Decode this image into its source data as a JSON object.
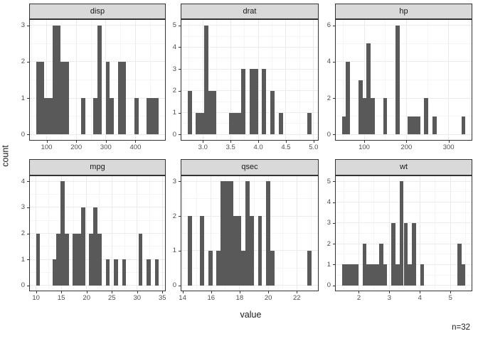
{
  "chart_data": {
    "type": "bar",
    "subtype": "faceted_histogram",
    "title": "",
    "xlabel": "value",
    "ylabel": "count",
    "annotation": "n=32",
    "sample_size": 32,
    "grid": true,
    "facet_layout": {
      "rows": 2,
      "cols": 3
    },
    "theme": {
      "bar_fill": "#595959",
      "strip_bg": "#d9d9d9",
      "panel_border": "#333333",
      "grid_major": "#ebebeb",
      "grid_minor": "#f5f5f5",
      "axis_text": "#4d4d4d",
      "title_text": "#1a1a1a",
      "panel_bg": "#ffffff"
    },
    "facets": [
      {
        "label": "disp",
        "x_domain": [
          43.45,
          499.65
        ],
        "bin_start": 64.188,
        "bin_width": 13.8241,
        "counts": [
          2,
          2,
          1,
          1,
          3,
          3,
          2,
          2,
          0,
          0,
          0,
          1,
          0,
          0,
          1,
          3,
          0,
          2,
          1,
          0,
          2,
          2,
          0,
          0,
          1,
          0,
          0,
          1,
          1,
          1
        ],
        "y_domain": [
          -0.15,
          3.15
        ],
        "x_ticks": [
          {
            "v": 100,
            "label": "100"
          },
          {
            "v": 200,
            "label": "200"
          },
          {
            "v": 300,
            "label": "300"
          },
          {
            "v": 400,
            "label": "400"
          }
        ],
        "x_minor": [
          50,
          150,
          250,
          350,
          450
        ],
        "y_ticks": [
          {
            "v": 0,
            "label": "0"
          },
          {
            "v": 1,
            "label": "1"
          },
          {
            "v": 2,
            "label": "2"
          },
          {
            "v": 3,
            "label": "3"
          }
        ],
        "y_minor": [
          0.5,
          1.5,
          2.5
        ]
      },
      {
        "label": "drat",
        "x_domain": [
          2.6104,
          5.0796
        ],
        "bin_start": 2.72259,
        "bin_width": 0.0748276,
        "counts": [
          2,
          0,
          1,
          1,
          5,
          2,
          2,
          0,
          0,
          0,
          1,
          1,
          1,
          3,
          0,
          3,
          3,
          0,
          3,
          0,
          2,
          0,
          1,
          0,
          0,
          0,
          0,
          0,
          0,
          1
        ],
        "y_domain": [
          -0.25,
          5.25
        ],
        "x_ticks": [
          {
            "v": 3.0,
            "label": "3.0"
          },
          {
            "v": 3.5,
            "label": "3.5"
          },
          {
            "v": 4.0,
            "label": "4.0"
          },
          {
            "v": 4.5,
            "label": "4.5"
          },
          {
            "v": 5.0,
            "label": "5.0"
          }
        ],
        "x_minor": [
          2.75,
          3.25,
          3.75,
          4.25,
          4.75
        ],
        "y_ticks": [
          {
            "v": 0,
            "label": "0"
          },
          {
            "v": 1,
            "label": "1"
          },
          {
            "v": 2,
            "label": "2"
          },
          {
            "v": 3,
            "label": "3"
          },
          {
            "v": 4,
            "label": "4"
          },
          {
            "v": 5,
            "label": "5"
          }
        ],
        "y_minor": [
          0.5,
          1.5,
          2.5,
          3.5,
          4.5
        ]
      },
      {
        "label": "hp",
        "x_domain": [
          32.483,
          354.517
        ],
        "bin_start": 47.1207,
        "bin_width": 9.75862,
        "counts": [
          1,
          4,
          0,
          0,
          3,
          2,
          5,
          2,
          0,
          0,
          2,
          0,
          0,
          6,
          0,
          0,
          1,
          1,
          1,
          0,
          2,
          0,
          1,
          0,
          0,
          0,
          0,
          0,
          0,
          1
        ],
        "y_domain": [
          -0.3,
          6.3
        ],
        "x_ticks": [
          {
            "v": 100,
            "label": "100"
          },
          {
            "v": 200,
            "label": "200"
          },
          {
            "v": 300,
            "label": "300"
          }
        ],
        "x_minor": [
          50,
          150,
          250,
          350
        ],
        "y_ticks": [
          {
            "v": 0,
            "label": "0"
          },
          {
            "v": 2,
            "label": "2"
          },
          {
            "v": 4,
            "label": "4"
          },
          {
            "v": 6,
            "label": "6"
          }
        ],
        "y_minor": [
          1,
          3,
          5
        ]
      },
      {
        "label": "mpg",
        "x_domain": [
          8.7793,
          35.5207
        ],
        "bin_start": 9.99483,
        "bin_width": 0.810345,
        "counts": [
          2,
          0,
          0,
          0,
          1,
          2,
          4,
          2,
          0,
          2,
          2,
          3,
          0,
          2,
          3,
          2,
          0,
          1,
          0,
          1,
          0,
          1,
          0,
          0,
          0,
          2,
          0,
          1,
          0,
          1
        ],
        "y_domain": [
          -0.2,
          4.2
        ],
        "x_ticks": [
          {
            "v": 10,
            "label": "10"
          },
          {
            "v": 15,
            "label": "15"
          },
          {
            "v": 20,
            "label": "20"
          },
          {
            "v": 25,
            "label": "25"
          },
          {
            "v": 30,
            "label": "30"
          },
          {
            "v": 35,
            "label": "35"
          }
        ],
        "x_minor": [
          12.5,
          17.5,
          22.5,
          27.5,
          32.5
        ],
        "y_ticks": [
          {
            "v": 0,
            "label": "0"
          },
          {
            "v": 1,
            "label": "1"
          },
          {
            "v": 2,
            "label": "2"
          },
          {
            "v": 3,
            "label": "3"
          },
          {
            "v": 4,
            "label": "4"
          }
        ],
        "y_minor": [
          0.5,
          1.5,
          2.5,
          3.5
        ]
      },
      {
        "label": "qsec",
        "x_domain": [
          13.9207,
          23.4793
        ],
        "bin_start": 14.3552,
        "bin_width": 0.289655,
        "counts": [
          2,
          0,
          0,
          2,
          0,
          1,
          0,
          1,
          3,
          3,
          3,
          2,
          2,
          1,
          3,
          2,
          0,
          2,
          0,
          3,
          1,
          0,
          0,
          0,
          0,
          0,
          0,
          0,
          0,
          1
        ],
        "y_domain": [
          -0.15,
          3.15
        ],
        "x_ticks": [
          {
            "v": 14,
            "label": "14"
          },
          {
            "v": 16,
            "label": "16"
          },
          {
            "v": 18,
            "label": "18"
          },
          {
            "v": 20,
            "label": "20"
          },
          {
            "v": 22,
            "label": "22"
          }
        ],
        "x_minor": [
          15,
          17,
          19,
          21,
          23
        ],
        "y_ticks": [
          {
            "v": 0,
            "label": "0"
          },
          {
            "v": 1,
            "label": "1"
          },
          {
            "v": 2,
            "label": "2"
          },
          {
            "v": 3,
            "label": "3"
          }
        ],
        "y_minor": [
          0.5,
          1.5,
          2.5
        ]
      },
      {
        "label": "wt",
        "x_domain": [
          1.24327,
          5.69372
        ],
        "bin_start": 1.44557,
        "bin_width": 0.134862,
        "counts": [
          1,
          1,
          1,
          1,
          0,
          2,
          1,
          1,
          1,
          2,
          1,
          0,
          3,
          1,
          5,
          3,
          1,
          3,
          0,
          1,
          0,
          0,
          0,
          0,
          0,
          0,
          0,
          0,
          2,
          1
        ],
        "y_domain": [
          -0.25,
          5.25
        ],
        "x_ticks": [
          {
            "v": 2,
            "label": "2"
          },
          {
            "v": 3,
            "label": "3"
          },
          {
            "v": 4,
            "label": "4"
          },
          {
            "v": 5,
            "label": "5"
          }
        ],
        "x_minor": [
          1.5,
          2.5,
          3.5,
          4.5,
          5.5
        ],
        "y_ticks": [
          {
            "v": 0,
            "label": "0"
          },
          {
            "v": 1,
            "label": "1"
          },
          {
            "v": 2,
            "label": "2"
          },
          {
            "v": 3,
            "label": "3"
          },
          {
            "v": 4,
            "label": "4"
          },
          {
            "v": 5,
            "label": "5"
          }
        ],
        "y_minor": [
          0.5,
          1.5,
          2.5,
          3.5,
          4.5
        ]
      }
    ]
  }
}
